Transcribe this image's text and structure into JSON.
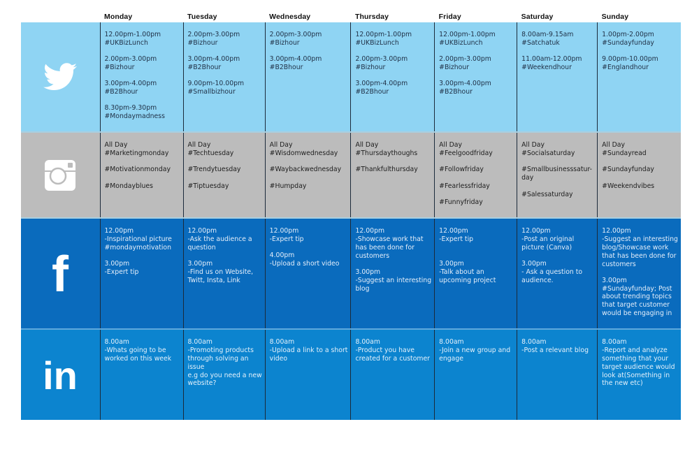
{
  "days": [
    "Monday",
    "Tuesday",
    "Wednesday",
    "Thursday",
    "Friday",
    "Saturday",
    "Sunday"
  ],
  "colors": {
    "twitter": "#8fd4f3",
    "instagram": "#bcbcbc",
    "facebook": "#0a6bbd",
    "linkedin": "#0c84cf"
  },
  "rows": [
    {
      "platform": "twitter",
      "icon": "twitter-bird-icon",
      "cells": [
        [
          [
            "12.00pm-1.00pm",
            "#UKBizLunch"
          ],
          [
            "2.00pm-3.00pm",
            "#Bizhour"
          ],
          [
            "3.00pm-4.00pm",
            "#B2Bhour"
          ],
          [
            "8.30pm-9.30pm",
            "#Mondaymadness"
          ]
        ],
        [
          [
            "2.00pm-3.00pm",
            "#Bizhour"
          ],
          [
            "3.00pm-4.00pm",
            "#B2Bhour"
          ],
          [
            "9.00pm-10.00pm",
            "#Smallbizhour"
          ]
        ],
        [
          [
            "2.00pm-3.00pm",
            "#Bizhour"
          ],
          [
            "3.00pm-4.00pm",
            "#B2Bhour"
          ]
        ],
        [
          [
            "12.00pm-1.00pm",
            "#UKBizLunch"
          ],
          [
            "2.00pm-3.00pm",
            "#Bizhour"
          ],
          [
            "3.00pm-4.00pm",
            "#B2Bhour"
          ]
        ],
        [
          [
            "12.00pm-1.00pm",
            "#UKBizLunch"
          ],
          [
            "2.00pm-3.00pm",
            "#Bizhour"
          ],
          [
            "3.00pm-4.00pm",
            "#B2Bhour"
          ]
        ],
        [
          [
            "8.00am-9.15am",
            "#Satchatuk"
          ],
          [
            "11.00am-12.00pm",
            "#Weekendhour"
          ]
        ],
        [
          [
            "1.00pm-2.00pm",
            "#Sundayfunday"
          ],
          [
            "9.00pm-10.00pm",
            "#Englandhour"
          ]
        ]
      ]
    },
    {
      "platform": "instagram",
      "icon": "instagram-camera-icon",
      "cells": [
        [
          [
            "All Day",
            "#Marketingmonday"
          ],
          [
            "#Motivationmonday"
          ],
          [
            "#Mondayblues"
          ]
        ],
        [
          [
            "All Day",
            "#Techtuesday"
          ],
          [
            "#Trendytuesday"
          ],
          [
            "#Tiptuesday"
          ]
        ],
        [
          [
            "All Day",
            "#Wisdomwednesday"
          ],
          [
            "#Waybackwednesday"
          ],
          [
            "#Humpday"
          ]
        ],
        [
          [
            "All Day",
            "#Thursdaythoughs"
          ],
          [
            "#Thankfulthursday"
          ]
        ],
        [
          [
            "All Day",
            "#Feelgoodfriday"
          ],
          [
            "#Followfriday"
          ],
          [
            "#Fearlessfriday"
          ],
          [
            "#Funnyfriday"
          ]
        ],
        [
          [
            "All Day",
            "#Socialsaturday"
          ],
          [
            "#Smallbusinesssatur-",
            "day"
          ],
          [
            "#Salessaturday"
          ]
        ],
        [
          [
            "All Day",
            "#Sundayread"
          ],
          [
            "#Sundayfunday"
          ],
          [
            "#Weekendvibes"
          ]
        ]
      ]
    },
    {
      "platform": "facebook",
      "icon": "facebook-f-icon",
      "logo_text": "f",
      "cells": [
        [
          [
            "12.00pm",
            "-Inspirational picture",
            "#mondaymotivation"
          ],
          [
            "3.00pm",
            "-Expert tip"
          ]
        ],
        [
          [
            "12.00pm",
            "-Ask the audience a",
            "question"
          ],
          [
            "3.00pm",
            "-Find us on Website,",
            "Twitt, Insta, Link"
          ]
        ],
        [
          [
            "12.00pm",
            "-Expert tip"
          ],
          [
            "4.00pm",
            "-Upload a short video"
          ]
        ],
        [
          [
            "12.00pm",
            "-Showcase work that",
            "has been done for",
            "customers"
          ],
          [
            "3.00pm",
            "-Suggest an interesting",
            "blog"
          ]
        ],
        [
          [
            "12.00pm",
            "-Expert tip"
          ],
          [
            "",
            "3.00pm",
            "-Talk about an",
            "upcoming project"
          ]
        ],
        [
          [
            "12.00pm",
            "-Post an original",
            "picture (Canva)"
          ],
          [
            "3.00pm",
            "- Ask a question to",
            "audience."
          ]
        ],
        [
          [
            "12.00pm",
            "-Suggest an interesting",
            "blog/Showcase work",
            "that has been done for",
            "customers"
          ],
          [
            "3.00pm",
            "#Sundayfunday; Post",
            "about trending topics",
            "that target customer",
            "would be engaging in"
          ]
        ]
      ]
    },
    {
      "platform": "linkedin",
      "icon": "linkedin-in-icon",
      "logo_text": "in",
      "cells": [
        [
          [
            "8.00am",
            "-Whats going to be",
            "worked on this week"
          ]
        ],
        [
          [
            "8.00am",
            "-Promoting products",
            "through solving an",
            "issue",
            "e.g do you need a new",
            "website?"
          ]
        ],
        [
          [
            "8.00am",
            "-Upload a link to a short",
            "video"
          ]
        ],
        [
          [
            "8.00am",
            "-Product you have",
            "created for a customer"
          ]
        ],
        [
          [
            "8.00am",
            "-Join a new group and",
            "engage"
          ]
        ],
        [
          [
            "8.00am",
            "-Post a relevant blog"
          ]
        ],
        [
          [
            "8.00am",
            "-Report and analyze",
            "something that your",
            "target audience would",
            "look at(Something in",
            "the new etc)"
          ]
        ]
      ]
    }
  ]
}
